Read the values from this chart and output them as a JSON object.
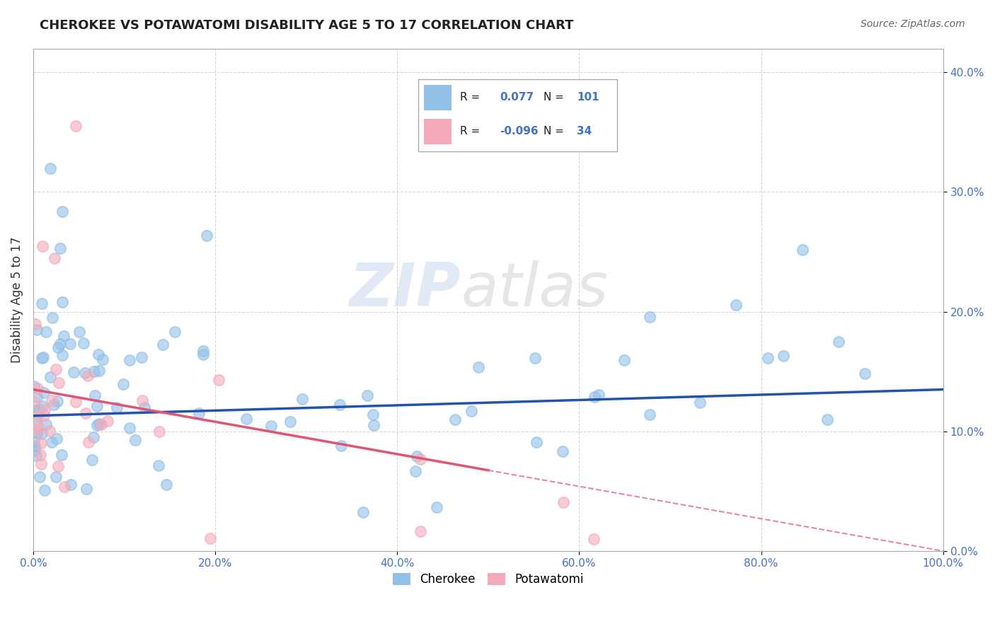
{
  "title": "CHEROKEE VS POTAWATOMI DISABILITY AGE 5 TO 17 CORRELATION CHART",
  "source": "Source: ZipAtlas.com",
  "ylabel": "Disability Age 5 to 17",
  "xlim": [
    0,
    1.0
  ],
  "ylim": [
    0,
    0.42
  ],
  "yticks": [
    0.0,
    0.1,
    0.2,
    0.3,
    0.4
  ],
  "xticks": [
    0.0,
    0.2,
    0.4,
    0.6,
    0.8,
    1.0
  ],
  "cherokee_color": "#92C0E8",
  "potawatomi_color": "#F4AABA",
  "cherokee_line_color": "#2255AA",
  "potawatomi_line_color": "#E05575",
  "cherokee_R": 0.077,
  "cherokee_N": 101,
  "potawatomi_R": -0.096,
  "potawatomi_N": 34,
  "tick_color": "#4472C4",
  "grid_color": "#CCCCCC",
  "title_color": "#222222",
  "source_color": "#666666",
  "label_color": "#333333"
}
